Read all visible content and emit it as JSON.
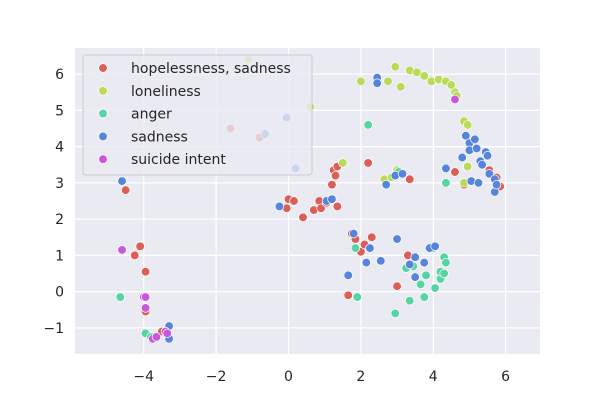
{
  "chart_data": {
    "type": "scatter",
    "title": "",
    "xlabel": "",
    "ylabel": "",
    "xlim": [
      -5.9,
      6.95
    ],
    "ylim": [
      -1.72,
      6.72
    ],
    "xticks": [
      -4,
      -2,
      0,
      2,
      4,
      6
    ],
    "xtick_labels": [
      "−4",
      "−2",
      "0",
      "2",
      "4",
      "6"
    ],
    "yticks": [
      -1,
      0,
      1,
      2,
      3,
      4,
      5,
      6
    ],
    "ytick_labels": [
      "−1",
      "0",
      "1",
      "2",
      "3",
      "4",
      "5",
      "6"
    ],
    "grid": true,
    "legend_position": "top-left",
    "series": [
      {
        "name": "hopelessness, sadness",
        "color": "#db5f57",
        "points": [
          [
            -4.5,
            2.8
          ],
          [
            -4.1,
            1.25
          ],
          [
            -4.25,
            1.0
          ],
          [
            -3.95,
            0.55
          ],
          [
            -3.95,
            -0.55
          ],
          [
            -3.75,
            -1.25
          ],
          [
            -3.5,
            -1.1
          ],
          [
            -1.6,
            4.5
          ],
          [
            -0.8,
            4.25
          ],
          [
            0.0,
            2.55
          ],
          [
            0.15,
            2.5
          ],
          [
            -0.05,
            2.3
          ],
          [
            0.4,
            2.05
          ],
          [
            0.7,
            2.25
          ],
          [
            0.85,
            2.5
          ],
          [
            0.9,
            2.3
          ],
          [
            1.05,
            2.45
          ],
          [
            1.2,
            2.95
          ],
          [
            1.25,
            3.35
          ],
          [
            1.35,
            3.45
          ],
          [
            1.3,
            3.2
          ],
          [
            1.35,
            2.35
          ],
          [
            1.75,
            1.6
          ],
          [
            1.85,
            1.45
          ],
          [
            2.0,
            1.1
          ],
          [
            2.1,
            1.3
          ],
          [
            2.3,
            1.5
          ],
          [
            2.2,
            3.55
          ],
          [
            1.65,
            -0.1
          ],
          [
            3.0,
            0.15
          ],
          [
            3.3,
            1.0
          ],
          [
            3.35,
            3.1
          ],
          [
            4.6,
            3.3
          ],
          [
            4.85,
            2.95
          ],
          [
            5.55,
            3.35
          ],
          [
            5.75,
            3.15
          ],
          [
            5.85,
            2.9
          ]
        ]
      },
      {
        "name": "loneliness",
        "color": "#b9db57",
        "points": [
          [
            -1.1,
            6.4
          ],
          [
            0.6,
            5.1
          ],
          [
            2.0,
            5.8
          ],
          [
            2.75,
            5.8
          ],
          [
            2.95,
            6.2
          ],
          [
            3.1,
            5.65
          ],
          [
            3.35,
            6.1
          ],
          [
            3.55,
            6.05
          ],
          [
            3.75,
            5.95
          ],
          [
            3.95,
            5.8
          ],
          [
            4.15,
            5.85
          ],
          [
            4.35,
            5.8
          ],
          [
            4.5,
            5.7
          ],
          [
            4.6,
            5.5
          ],
          [
            4.65,
            5.4
          ],
          [
            4.85,
            4.7
          ],
          [
            4.95,
            4.6
          ],
          [
            4.95,
            3.45
          ],
          [
            4.85,
            3.0
          ],
          [
            1.5,
            3.55
          ],
          [
            2.65,
            3.1
          ],
          [
            2.85,
            3.15
          ],
          [
            3.0,
            3.35
          ]
        ]
      },
      {
        "name": "anger",
        "color": "#57d3a4",
        "points": [
          [
            -4.65,
            -0.15
          ],
          [
            -3.95,
            -1.15
          ],
          [
            -3.8,
            -1.25
          ],
          [
            2.2,
            4.6
          ],
          [
            3.05,
            3.3
          ],
          [
            1.85,
            1.2
          ],
          [
            1.9,
            -0.15
          ],
          [
            2.95,
            -0.6
          ],
          [
            3.25,
            0.65
          ],
          [
            3.45,
            0.7
          ],
          [
            3.65,
            0.2
          ],
          [
            3.35,
            -0.25
          ],
          [
            3.75,
            -0.15
          ],
          [
            3.8,
            0.45
          ],
          [
            4.0,
            1.2
          ],
          [
            4.05,
            0.1
          ],
          [
            4.2,
            0.35
          ],
          [
            4.2,
            0.55
          ],
          [
            4.3,
            0.95
          ],
          [
            4.35,
            0.8
          ],
          [
            4.3,
            0.5
          ],
          [
            4.35,
            3.0
          ]
        ]
      },
      {
        "name": "sadness",
        "color": "#5784db",
        "points": [
          [
            -4.6,
            3.05
          ],
          [
            -3.3,
            -0.95
          ],
          [
            -3.3,
            -1.3
          ],
          [
            -0.65,
            4.35
          ],
          [
            -0.05,
            4.8
          ],
          [
            0.2,
            3.4
          ],
          [
            -0.25,
            2.35
          ],
          [
            1.05,
            2.5
          ],
          [
            1.2,
            2.55
          ],
          [
            1.8,
            1.6
          ],
          [
            1.65,
            0.45
          ],
          [
            2.25,
            1.2
          ],
          [
            2.15,
            0.8
          ],
          [
            2.55,
            0.85
          ],
          [
            2.45,
            5.9
          ],
          [
            2.45,
            5.75
          ],
          [
            2.7,
            2.95
          ],
          [
            2.95,
            3.2
          ],
          [
            3.15,
            3.25
          ],
          [
            3.0,
            1.45
          ],
          [
            3.5,
            0.95
          ],
          [
            3.35,
            0.75
          ],
          [
            3.5,
            0.4
          ],
          [
            3.75,
            0.8
          ],
          [
            3.9,
            1.2
          ],
          [
            4.05,
            1.25
          ],
          [
            4.35,
            3.4
          ],
          [
            4.8,
            3.7
          ],
          [
            4.9,
            4.3
          ],
          [
            5.0,
            4.1
          ],
          [
            5.0,
            3.9
          ],
          [
            5.05,
            3.05
          ],
          [
            5.15,
            4.2
          ],
          [
            5.2,
            3.95
          ],
          [
            5.25,
            3.0
          ],
          [
            5.3,
            3.6
          ],
          [
            5.35,
            3.5
          ],
          [
            5.45,
            3.85
          ],
          [
            5.5,
            3.75
          ],
          [
            5.55,
            3.25
          ],
          [
            5.7,
            3.1
          ],
          [
            5.7,
            2.75
          ],
          [
            5.75,
            2.95
          ]
        ]
      },
      {
        "name": "suicide intent",
        "color": "#c957db",
        "points": [
          [
            -4.6,
            1.15
          ],
          [
            -4.0,
            -0.15
          ],
          [
            -3.95,
            -0.15
          ],
          [
            -3.95,
            -0.45
          ],
          [
            -3.75,
            -1.3
          ],
          [
            -3.65,
            -1.25
          ],
          [
            -3.4,
            -1.1
          ],
          [
            -3.35,
            -1.15
          ],
          [
            4.6,
            5.3
          ]
        ]
      }
    ]
  }
}
